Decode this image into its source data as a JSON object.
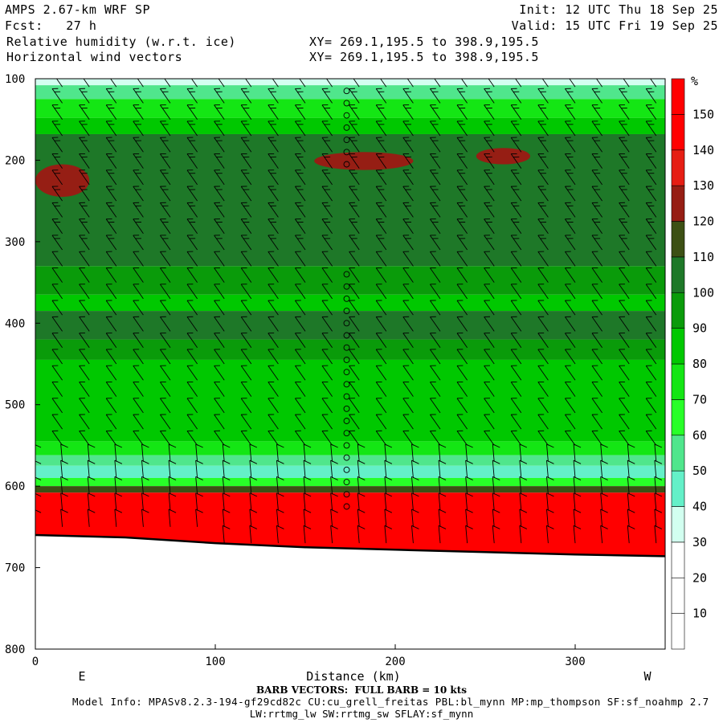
{
  "header": {
    "model": "AMPS 2.67-km WRF SP",
    "fcst": "Fcst:   27 h",
    "field1": "Relative humidity (w.r.t. ice)",
    "field2": "Horizontal wind vectors",
    "xy1": "XY= 269.1,195.5 to 398.9,195.5",
    "xy2": "XY= 269.1,195.5 to 398.9,195.5",
    "init": "Init: 12 UTC Thu 18 Sep 25",
    "valid": "Valid: 15 UTC Fri 19 Sep 25"
  },
  "footer": {
    "barb_note": "BARB VECTORS:  FULL BARB = 10 kts",
    "model_info": "Model Info: MPASv8.2.3-194-gf29cd82c CU:cu_grell_freitas PBL:bl_mynn MP:mp_thompson SF:sf_noahmp 2.7",
    "model_info2": "LW:rrtmg_lw SW:rrtmg_sw SFLAY:sf_mynn"
  },
  "chart_data": {
    "type": "heatmap",
    "title": "Relative humidity (w.r.t. ice)",
    "xlabel": "Distance (km)",
    "ylabel": "",
    "xlim": [
      0,
      350
    ],
    "ylim": [
      800,
      100
    ],
    "x_ticks": [
      0,
      100,
      200,
      300
    ],
    "y_ticks": [
      100,
      200,
      300,
      400,
      500,
      600,
      700,
      800
    ],
    "direction_labels": {
      "left": "E",
      "right": "W"
    },
    "colorbar": {
      "unit": "%",
      "levels": [
        10,
        20,
        30,
        40,
        50,
        60,
        70,
        80,
        90,
        100,
        110,
        120,
        130,
        140,
        150
      ],
      "colors": [
        "#ffffff",
        "#ffffff",
        "#ffffff",
        "#d2fff0",
        "#64f0c8",
        "#50e68c",
        "#28ff28",
        "#14e614",
        "#00c800",
        "#0a9b0a",
        "#1e7828",
        "#3c5014",
        "#961e14",
        "#e61e14",
        "#ff0000",
        "#ff0000"
      ]
    },
    "humidity_bands": [
      {
        "top": 100,
        "bottom": 108,
        "rh": 35
      },
      {
        "top": 108,
        "bottom": 125,
        "rh": 55
      },
      {
        "top": 125,
        "bottom": 148,
        "rh": 70
      },
      {
        "top": 148,
        "bottom": 168,
        "rh": 85
      },
      {
        "top": 168,
        "bottom": 330,
        "rh": 105
      },
      {
        "top": 330,
        "bottom": 365,
        "rh": 90
      },
      {
        "top": 365,
        "bottom": 385,
        "rh": 80
      },
      {
        "top": 385,
        "bottom": 420,
        "rh": 105
      },
      {
        "top": 420,
        "bottom": 445,
        "rh": 90
      },
      {
        "top": 445,
        "bottom": 520,
        "rh": 85
      },
      {
        "top": 520,
        "bottom": 545,
        "rh": 80
      },
      {
        "top": 545,
        "bottom": 562,
        "rh": 70
      },
      {
        "top": 562,
        "bottom": 575,
        "rh": 55
      },
      {
        "top": 575,
        "bottom": 590,
        "rh": 40
      },
      {
        "top": 590,
        "bottom": 600,
        "rh": 65
      },
      {
        "top": 600,
        "bottom": 608,
        "rh": 110
      },
      {
        "top": 608,
        "bottom": 700,
        "rh": 150
      }
    ],
    "moist_patches": [
      {
        "x": [
          0,
          30
        ],
        "p": [
          205,
          245
        ],
        "rh": 125
      },
      {
        "x": [
          155,
          210
        ],
        "p": [
          190,
          212
        ],
        "rh": 125
      },
      {
        "x": [
          245,
          275
        ],
        "p": [
          185,
          205
        ],
        "rh": 125
      }
    ],
    "terrain_surface": [
      {
        "x": 0,
        "p": 660
      },
      {
        "x": 50,
        "p": 663
      },
      {
        "x": 100,
        "p": 670
      },
      {
        "x": 150,
        "p": 675
      },
      {
        "x": 200,
        "p": 678
      },
      {
        "x": 250,
        "p": 681
      },
      {
        "x": 300,
        "p": 684
      },
      {
        "x": 350,
        "p": 686
      }
    ],
    "wind_barb_columns_km": [
      0,
      15,
      30,
      45,
      60,
      75,
      90,
      105,
      120,
      135,
      150,
      165,
      180,
      195,
      210,
      225,
      240,
      255,
      270,
      285,
      300,
      315,
      330,
      345
    ],
    "calm_column_km": 173
  }
}
